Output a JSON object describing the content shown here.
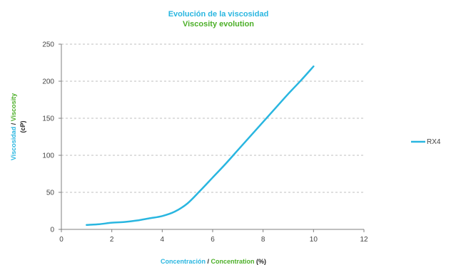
{
  "colors": {
    "spanish": "#29b6e0",
    "english": "#4caf28",
    "series": "#29b6e0",
    "grid": "#bfbfbf",
    "axis": "#7f7f7f",
    "tick_text": "#444444",
    "dark_text": "#222222"
  },
  "chart_data": {
    "type": "line",
    "title": "Evolución de la  viscosidad",
    "subtitle": "Viscosity evolution",
    "ylabel": {
      "spanish": "Viscosidad",
      "separator": " / ",
      "english": "Viscosity",
      "unit": "(cP)"
    },
    "xlabel": {
      "spanish": "Concentración",
      "separator": "  /  ",
      "english": "Concentration",
      "unit": " (%)"
    },
    "xlim": [
      0,
      12
    ],
    "ylim": [
      0,
      250
    ],
    "x_ticks": [
      0,
      2,
      4,
      6,
      8,
      10,
      12
    ],
    "y_ticks": [
      0,
      50,
      100,
      150,
      200,
      250
    ],
    "grid": {
      "horizontal": true,
      "vertical": false,
      "style": "dashed"
    },
    "legend_position": "right",
    "series": [
      {
        "name": "RX4",
        "x": [
          1,
          1.5,
          2,
          2.5,
          3,
          3.5,
          4,
          4.5,
          5,
          5.5,
          6,
          6.5,
          7,
          7.5,
          8,
          8.5,
          9,
          9.5,
          10
        ],
        "values": [
          6,
          7,
          9,
          10,
          12,
          15,
          18,
          24,
          35,
          52,
          70,
          88,
          107,
          126,
          145,
          164,
          183,
          201,
          220
        ]
      }
    ]
  }
}
